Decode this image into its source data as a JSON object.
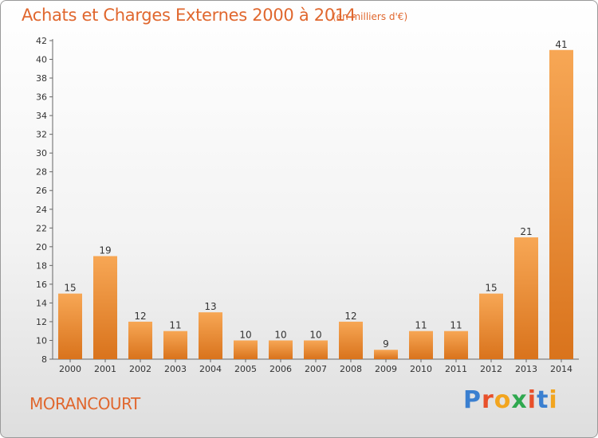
{
  "header": {
    "title": "Achats et Charges Externes 2000 à 2014",
    "subtitle": "(en milliers d'€)"
  },
  "footer": {
    "commune": "MORANCOURT",
    "brand_letters": [
      "P",
      "r",
      "o",
      "x",
      "i",
      "t",
      "i"
    ],
    "brand_colors": [
      "#3a7fd0",
      "#e8502a",
      "#f2a51f",
      "#2fa84f",
      "#e8502a",
      "#3a7fd0",
      "#f2a51f"
    ]
  },
  "colors": {
    "bar_light": "#f7a755",
    "bar_dark": "#d9731c",
    "axis": "#666666",
    "accent": "#e0672e"
  },
  "chart_data": {
    "type": "bar",
    "title": "Achats et Charges Externes 2000 à 2014",
    "subtitle": "(en milliers d'€)",
    "categories": [
      "2000",
      "2001",
      "2002",
      "2003",
      "2004",
      "2005",
      "2006",
      "2007",
      "2008",
      "2009",
      "2010",
      "2011",
      "2012",
      "2013",
      "2014"
    ],
    "values": [
      15,
      19,
      12,
      11,
      13,
      10,
      10,
      10,
      12,
      9,
      11,
      11,
      15,
      21,
      41
    ],
    "ylim": [
      8,
      42
    ],
    "yticks": [
      8,
      10,
      12,
      14,
      16,
      18,
      20,
      22,
      24,
      26,
      28,
      30,
      32,
      34,
      36,
      38,
      40,
      42
    ],
    "grid": false,
    "xlabel": "",
    "ylabel": ""
  }
}
